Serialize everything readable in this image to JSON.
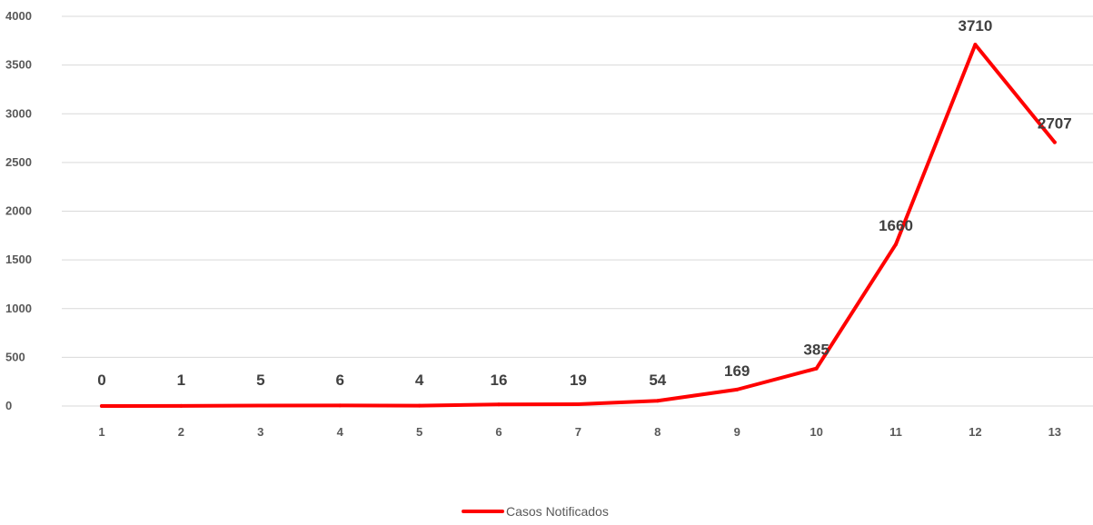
{
  "chart_data": {
    "type": "line",
    "categories": [
      "1",
      "2",
      "3",
      "4",
      "5",
      "6",
      "7",
      "8",
      "9",
      "10",
      "11",
      "12",
      "13"
    ],
    "series": [
      {
        "name": "Casos Notificados",
        "values": [
          0,
          1,
          5,
          6,
          4,
          16,
          19,
          54,
          169,
          385,
          1660,
          3710,
          2707
        ]
      }
    ],
    "ylim": [
      0,
      4000
    ],
    "yticks": [
      0,
      500,
      1000,
      1500,
      2000,
      2500,
      3000,
      3500,
      4000
    ],
    "grid": true,
    "legend_position": "bottom",
    "data_labels": true,
    "title": "",
    "xlabel": "",
    "ylabel": "",
    "colors": {
      "line": "#ff0000"
    }
  }
}
